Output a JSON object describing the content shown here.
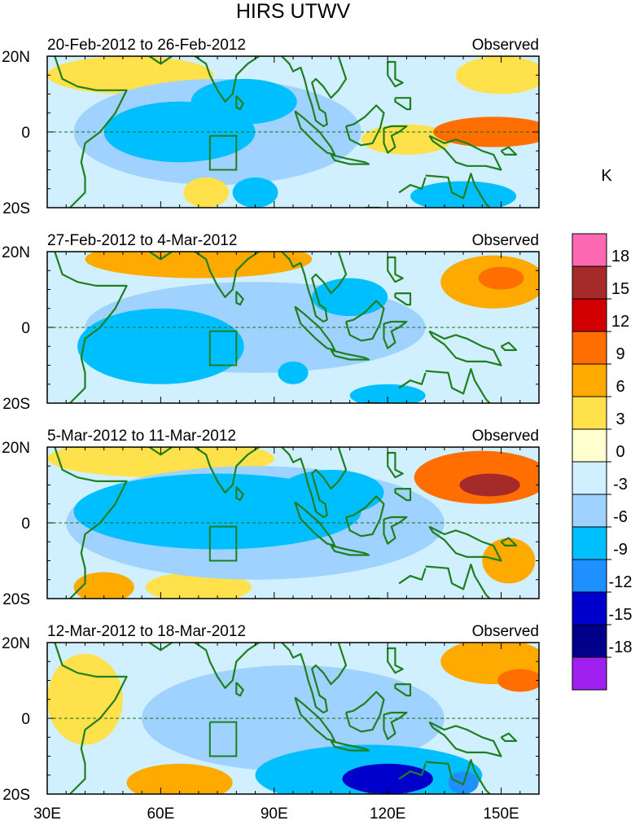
{
  "chart_data": {
    "type": "heatmap",
    "title": "HIRS UTWV",
    "units_label": "K",
    "x_ticks": [
      30,
      60,
      90,
      120,
      150
    ],
    "x_tick_labels": [
      "30E",
      "60E",
      "90E",
      "120E",
      "150E"
    ],
    "xlim": [
      30,
      160
    ],
    "ylim": [
      -20,
      20
    ],
    "y_tick_labels": [
      "20N",
      "0",
      "20S"
    ],
    "colorbar_labels": [
      "18",
      "15",
      "12",
      "9",
      "6",
      "3",
      "0",
      "-3",
      "-6",
      "-9",
      "-12",
      "-15",
      "-18"
    ],
    "levels": [
      -18,
      -15,
      -12,
      -9,
      -6,
      -3,
      0,
      3,
      6,
      9,
      12,
      15,
      18
    ],
    "colors": [
      "#a020f0",
      "#00008b",
      "#0000cd",
      "#1e90ff",
      "#00bfff",
      "#a0d2ff",
      "#d0f0ff",
      "#ffffd0",
      "#ffe14b",
      "#ffaa00",
      "#ff6e00",
      "#d20000",
      "#a52a2a",
      "#ff69b4"
    ],
    "panels": [
      {
        "date_label": "20-Feb-2012 to 26-Feb-2012",
        "tag": "Observed",
        "blobs": [
          {
            "lon": 52,
            "lat": 15,
            "rx": 22,
            "ry": 5,
            "v": 4.5
          },
          {
            "lon": 150,
            "lat": 15,
            "rx": 12,
            "ry": 5,
            "v": 4.5
          },
          {
            "lon": 148,
            "lat": 0,
            "rx": 16,
            "ry": 4,
            "v": 9
          },
          {
            "lon": 125,
            "lat": -2,
            "rx": 12,
            "ry": 4,
            "v": 4.5
          },
          {
            "lon": 65,
            "lat": 0,
            "rx": 20,
            "ry": 8,
            "v": -7.5
          },
          {
            "lon": 82,
            "lat": 8,
            "rx": 14,
            "ry": 6,
            "v": -7.5
          },
          {
            "lon": 85,
            "lat": -16,
            "rx": 6,
            "ry": 4,
            "v": -7.5
          },
          {
            "lon": 140,
            "lat": -17,
            "rx": 14,
            "ry": 4,
            "v": -7.5
          },
          {
            "lon": 75,
            "lat": 0,
            "rx": 38,
            "ry": 14,
            "v": -4.5
          },
          {
            "lon": 72,
            "lat": -16,
            "rx": 6,
            "ry": 4,
            "v": 4.5
          }
        ]
      },
      {
        "date_label": "27-Feb-2012 to 4-Mar-2012",
        "tag": "Observed",
        "blobs": [
          {
            "lon": 70,
            "lat": 18,
            "rx": 30,
            "ry": 5,
            "v": 7.5
          },
          {
            "lon": 148,
            "lat": 12,
            "rx": 14,
            "ry": 7,
            "v": 7.5
          },
          {
            "lon": 150,
            "lat": 13,
            "rx": 6,
            "ry": 3,
            "v": 10.5
          },
          {
            "lon": 60,
            "lat": -5,
            "rx": 22,
            "ry": 10,
            "v": -7.5
          },
          {
            "lon": 110,
            "lat": 8,
            "rx": 10,
            "ry": 5,
            "v": -7.5
          },
          {
            "lon": 120,
            "lat": -18,
            "rx": 10,
            "ry": 3,
            "v": -7.5
          },
          {
            "lon": 95,
            "lat": -12,
            "rx": 4,
            "ry": 3,
            "v": -7.5
          },
          {
            "lon": 85,
            "lat": 0,
            "rx": 45,
            "ry": 12,
            "v": -4.5
          },
          {
            "lon": 140,
            "lat": -10,
            "rx": 14,
            "ry": 6,
            "v": -1.5
          }
        ]
      },
      {
        "date_label": "5-Mar-2012 to 11-Mar-2012",
        "tag": "Observed",
        "blobs": [
          {
            "lon": 60,
            "lat": 17,
            "rx": 30,
            "ry": 5,
            "v": 4.5
          },
          {
            "lon": 145,
            "lat": 12,
            "rx": 18,
            "ry": 7,
            "v": 10.5
          },
          {
            "lon": 147,
            "lat": 10,
            "rx": 8,
            "ry": 3,
            "v": 16.5
          },
          {
            "lon": 45,
            "lat": -17,
            "rx": 8,
            "ry": 4,
            "v": 7.5
          },
          {
            "lon": 70,
            "lat": -17,
            "rx": 14,
            "ry": 4,
            "v": 4.5
          },
          {
            "lon": 152,
            "lat": -10,
            "rx": 7,
            "ry": 6,
            "v": 7.5
          },
          {
            "lon": 75,
            "lat": 3,
            "rx": 38,
            "ry": 10,
            "v": -7.5
          },
          {
            "lon": 105,
            "lat": 8,
            "rx": 14,
            "ry": 6,
            "v": -7.5
          },
          {
            "lon": 85,
            "lat": 0,
            "rx": 50,
            "ry": 15,
            "v": -4.5
          }
        ]
      },
      {
        "date_label": "12-Mar-2012 to 18-Mar-2012",
        "tag": "Observed",
        "blobs": [
          {
            "lon": 40,
            "lat": 5,
            "rx": 10,
            "ry": 12,
            "v": 4.5
          },
          {
            "lon": 148,
            "lat": 15,
            "rx": 14,
            "ry": 6,
            "v": 7.5
          },
          {
            "lon": 155,
            "lat": 10,
            "rx": 6,
            "ry": 3,
            "v": 10.5
          },
          {
            "lon": 65,
            "lat": -17,
            "rx": 14,
            "ry": 5,
            "v": 7.5
          },
          {
            "lon": 115,
            "lat": -15,
            "rx": 30,
            "ry": 8,
            "v": -7.5
          },
          {
            "lon": 120,
            "lat": -16,
            "rx": 12,
            "ry": 4,
            "v": -13.5
          },
          {
            "lon": 140,
            "lat": -17,
            "rx": 4,
            "ry": 3,
            "v": -10.5
          },
          {
            "lon": 95,
            "lat": 0,
            "rx": 40,
            "ry": 14,
            "v": -4.5
          }
        ]
      }
    ]
  }
}
